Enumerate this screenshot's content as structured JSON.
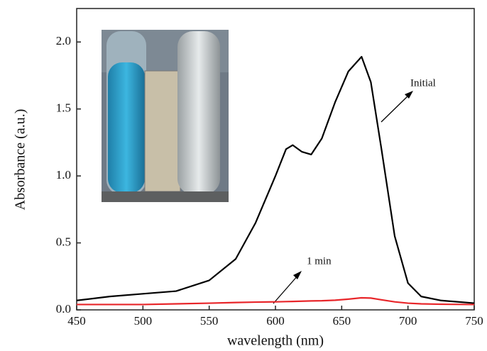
{
  "chart_data": {
    "type": "line",
    "xlabel": "wavelength (nm)",
    "ylabel": "Absorbance (a.u.)",
    "x": [
      450,
      475,
      500,
      525,
      550,
      570,
      585,
      600,
      608,
      613,
      620,
      627,
      635,
      645,
      655,
      665,
      672,
      680,
      690,
      700,
      710,
      725,
      750
    ],
    "series": [
      {
        "color": "#000000",
        "values": [
          0.07,
          0.1,
          0.12,
          0.14,
          0.22,
          0.38,
          0.65,
          1.0,
          1.2,
          1.23,
          1.18,
          1.16,
          1.28,
          1.55,
          1.78,
          1.89,
          1.7,
          1.2,
          0.55,
          0.2,
          0.1,
          0.07,
          0.05
        ]
      },
      {
        "color": "#e8262a",
        "values": [
          0.04,
          0.04,
          0.04,
          0.045,
          0.05,
          0.055,
          0.058,
          0.06,
          0.062,
          0.063,
          0.065,
          0.067,
          0.068,
          0.072,
          0.08,
          0.09,
          0.088,
          0.075,
          0.06,
          0.05,
          0.045,
          0.042,
          0.04
        ]
      }
    ],
    "annotations": [
      "Initial",
      "1 min"
    ],
    "xlim": [
      450,
      750
    ],
    "xticks": [
      450,
      500,
      550,
      600,
      650,
      700,
      750
    ],
    "ylim": [
      0,
      2.25
    ],
    "yticks": [
      {
        "value": 0,
        "label": "0.0"
      },
      {
        "value": 0.5,
        "label": "0.5"
      },
      {
        "value": 1,
        "label": "1.0"
      },
      {
        "value": 1.5,
        "label": "1.5"
      },
      {
        "value": 2,
        "label": "2.0"
      }
    ]
  }
}
